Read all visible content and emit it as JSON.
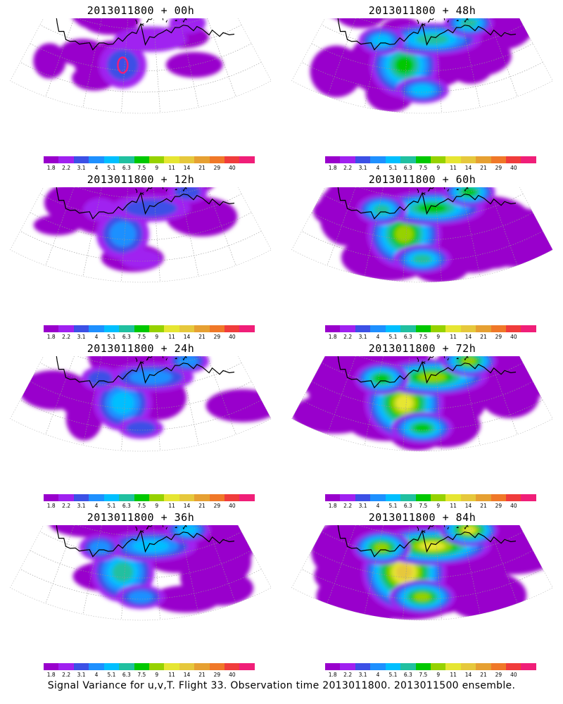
{
  "caption": "Signal Variance for u,v,T. Flight 33. Observation time 2013011800. 2013011500 ensemble.",
  "colorbar": {
    "colors": [
      "#9900cc",
      "#a020f0",
      "#3c50e6",
      "#1e90ff",
      "#00bfff",
      "#20c0a0",
      "#00c800",
      "#96d200",
      "#e6e632",
      "#e6c83c",
      "#e6a032",
      "#f07828",
      "#f03c3c",
      "#f01e78"
    ],
    "labels": [
      "1.8",
      "2.2",
      "3.1",
      "4",
      "5.1",
      "6.3",
      "7.5",
      "9",
      "11",
      "14",
      "21",
      "29",
      "40"
    ]
  },
  "panels": [
    {
      "title": "2013011800 + 00h",
      "lead_hours": 0
    },
    {
      "title": "2013011800 + 48h",
      "lead_hours": 48
    },
    {
      "title": "2013011800 + 12h",
      "lead_hours": 12
    },
    {
      "title": "2013011800 + 60h",
      "lead_hours": 60
    },
    {
      "title": "2013011800 + 24h",
      "lead_hours": 24
    },
    {
      "title": "2013011800 + 72h",
      "lead_hours": 72
    },
    {
      "title": "2013011800 + 36h",
      "lead_hours": 36
    },
    {
      "title": "2013011800 + 84h",
      "lead_hours": 84
    }
  ]
}
